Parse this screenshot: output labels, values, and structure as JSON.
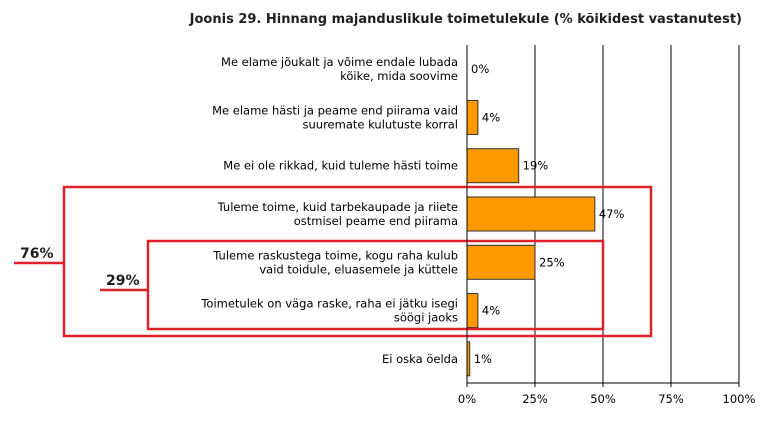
{
  "chart_data": {
    "type": "bar",
    "orientation": "horizontal",
    "title": "Joonis 29. Hinnang majanduslikule toimetulekule (% kõikidest vastanutest)",
    "categories": [
      [
        "Me elame jõukalt ja võime endale lubada",
        "kõike, mida soovime"
      ],
      [
        "Me elame hästi ja peame end piirama vaid",
        "suuremate kulutuste korral"
      ],
      [
        "Me ei ole rikkad, kuid tuleme hästi toime"
      ],
      [
        "Tuleme toime, kuid tarbekaupade ja riiete",
        "ostmisel peame end piirama"
      ],
      [
        "Tuleme raskustega toime, kogu raha kulub",
        "vaid toidule, eluasemele ja küttele"
      ],
      [
        "Toimetulek on väga raske, raha ei jätku isegi",
        "söögi jaoks"
      ],
      [
        "Ei oska öelda"
      ]
    ],
    "values": [
      0,
      4,
      19,
      47,
      25,
      4,
      1
    ],
    "value_labels": [
      "0%",
      "4%",
      "19%",
      "47%",
      "25%",
      "4%",
      "1%"
    ],
    "xlim": [
      0,
      100
    ],
    "x_ticks": [
      "0%",
      "25%",
      "50%",
      "75%",
      "100%"
    ],
    "x_tick_values": [
      0,
      25,
      50,
      75,
      100
    ],
    "grid": true,
    "bar_color": "#ff9900",
    "annotations": [
      {
        "label": "76%",
        "groups_categories": [
          3,
          4,
          5
        ],
        "color": "#e0202a"
      },
      {
        "label": "29%",
        "groups_categories": [
          4,
          5
        ],
        "color": "#e0202a"
      }
    ]
  }
}
